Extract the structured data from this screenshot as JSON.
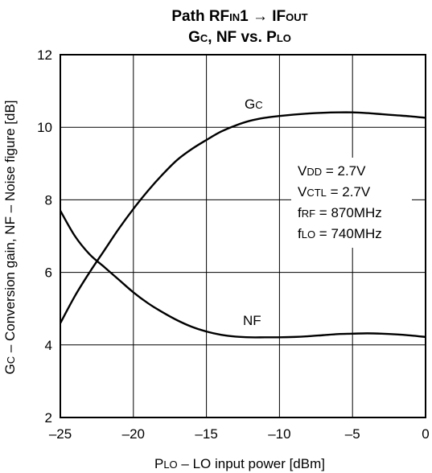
{
  "chart_data": {
    "type": "line",
    "title_line1": "Path RF",
    "title_line1_sub": "IN",
    "title_line1_mid": "1 → IF",
    "title_line1_sub2": "OUT",
    "title_line2_a": "G",
    "title_line2_a_sub": "C",
    "title_line2_b": ", NF vs. P",
    "title_line2_b_sub": "LO",
    "xlabel_main": "P",
    "xlabel_sub": "LO",
    "xlabel_rest": " – LO input power [dBm]",
    "ylabel_main": "G",
    "ylabel_sub": "C",
    "ylabel_rest": " – Conversion gain, NF – Noise figure [dB]",
    "xlim": [
      -25,
      0
    ],
    "ylim": [
      2,
      12
    ],
    "xticks": [
      -25,
      -20,
      -15,
      -10,
      -5,
      0
    ],
    "xtick_labels": [
      "–25",
      "–20",
      "–15",
      "–10",
      "–5",
      "0"
    ],
    "yticks": [
      2,
      4,
      6,
      8,
      10,
      12
    ],
    "ytick_labels": [
      "2",
      "4",
      "6",
      "8",
      "10",
      "12"
    ],
    "grid": true,
    "series": [
      {
        "name": "Gc",
        "name_main": "G",
        "name_sub": "C",
        "x": [
          -25,
          -24,
          -23,
          -22,
          -21,
          -20,
          -19,
          -18,
          -17,
          -16,
          -15,
          -14,
          -13,
          -12,
          -11,
          -10,
          -9,
          -8,
          -7,
          -6,
          -5,
          -4,
          -3,
          -2,
          -1,
          0
        ],
        "y": [
          4.6,
          5.35,
          6.0,
          6.6,
          7.2,
          7.75,
          8.25,
          8.7,
          9.1,
          9.4,
          9.65,
          9.88,
          10.05,
          10.18,
          10.26,
          10.31,
          10.35,
          10.38,
          10.4,
          10.41,
          10.41,
          10.39,
          10.36,
          10.33,
          10.3,
          10.26
        ]
      },
      {
        "name": "NF",
        "x": [
          -25,
          -24,
          -23,
          -22,
          -21,
          -20,
          -19,
          -18,
          -17,
          -16,
          -15,
          -14,
          -13,
          -12,
          -11,
          -10,
          -9,
          -8,
          -7,
          -6,
          -5,
          -4,
          -3,
          -2,
          -1,
          0
        ],
        "y": [
          7.7,
          7.0,
          6.5,
          6.15,
          5.8,
          5.45,
          5.15,
          4.9,
          4.68,
          4.5,
          4.37,
          4.28,
          4.23,
          4.21,
          4.21,
          4.21,
          4.22,
          4.24,
          4.27,
          4.3,
          4.31,
          4.32,
          4.31,
          4.29,
          4.26,
          4.22
        ]
      }
    ],
    "annotations": [
      {
        "main": "V",
        "sub": "DD",
        "rest": " = 2.7V"
      },
      {
        "main": "V",
        "sub": "CTL",
        "rest": " = 2.7V"
      },
      {
        "main": "f",
        "sub": "RF",
        "rest": " = 870MHz"
      },
      {
        "main": "f",
        "sub": "LO",
        "rest": " = 740MHz"
      }
    ],
    "series_labels": [
      {
        "series": "Gc",
        "main": "G",
        "sub": "C"
      },
      {
        "series": "NF",
        "main": "NF",
        "sub": ""
      }
    ]
  }
}
